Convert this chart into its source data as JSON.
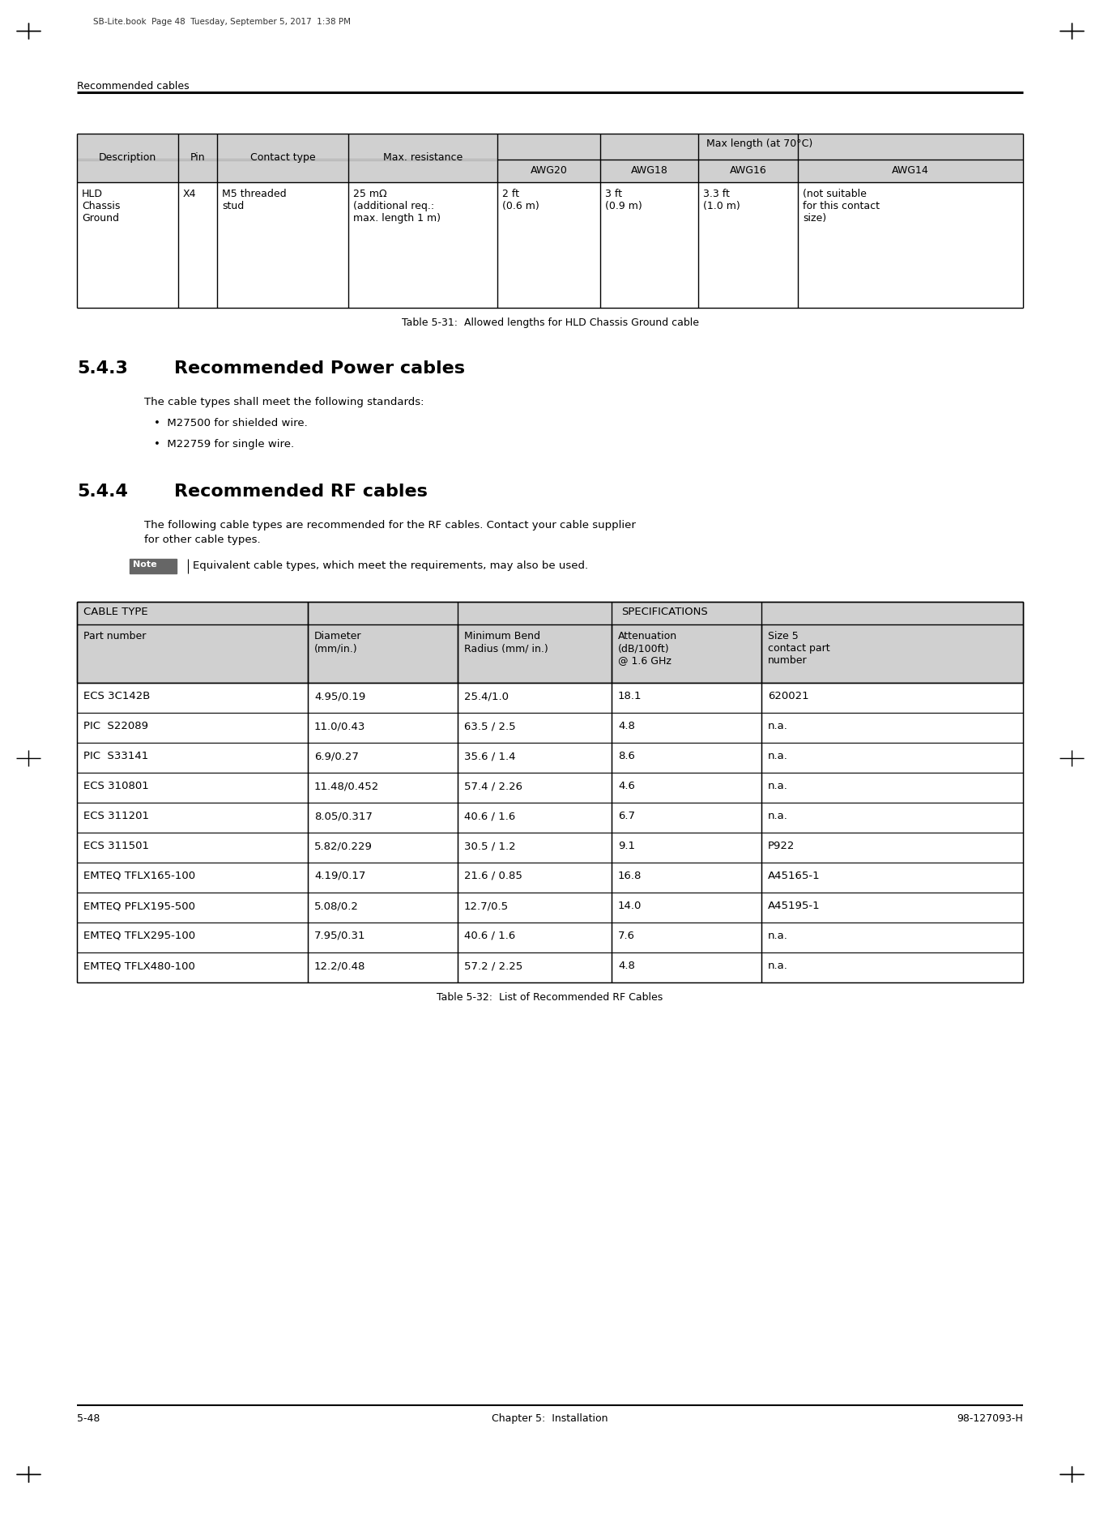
{
  "page_header_text": "SB-Lite.book  Page 48  Tuesday, September 5, 2017  1:38 PM",
  "section_header": "Recommended cables",
  "footer_left": "5-48",
  "footer_center": "Chapter 5:  Installation",
  "footer_right": "98-127093-H",
  "table1_caption": "Table 5-31:  Allowed lengths for HLD Chassis Ground cable",
  "section_543_num": "5.4.3",
  "section_543_title": "Recommended Power cables",
  "section_543_body": "The cable types shall meet the following standards:",
  "section_543_bullets": [
    "M27500 for shielded wire.",
    "M22759 for single wire."
  ],
  "section_544_num": "5.4.4",
  "section_544_title": "Recommended RF cables",
  "section_544_body1": "The following cable types are recommended for the RF cables. Contact your cable supplier",
  "section_544_body2": "for other cable types.",
  "note_text": "Equivalent cable types, which meet the requirements, may also be used.",
  "table2_caption": "Table 5-32:  List of Recommended RF Cables",
  "table2_sub_headers": [
    "Part number",
    "Diameter\n(mm/in.)",
    "Minimum Bend\nRadius (mm/ in.)",
    "Attenuation\n(dB/100ft)\n@ 1.6 GHz",
    "Size 5\ncontact part\nnumber"
  ],
  "table2_data": [
    [
      "ECS 3C142B",
      "4.95/0.19",
      "25.4/1.0",
      "18.1",
      "620021"
    ],
    [
      "PIC  S22089",
      "11.0/0.43",
      "63.5 / 2.5",
      "4.8",
      "n.a."
    ],
    [
      "PIC  S33141",
      "6.9/0.27",
      "35.6 / 1.4",
      "8.6",
      "n.a."
    ],
    [
      "ECS 310801",
      "11.48/0.452",
      "57.4 / 2.26",
      "4.6",
      "n.a."
    ],
    [
      "ECS 311201",
      "8.05/0.317",
      "40.6 / 1.6",
      "6.7",
      "n.a."
    ],
    [
      "ECS 311501",
      "5.82/0.229",
      "30.5 / 1.2",
      "9.1",
      "P922"
    ],
    [
      "EMTEQ TFLX165-100",
      "4.19/0.17",
      "21.6 / 0.85",
      "16.8",
      "A45165-1"
    ],
    [
      "EMTEQ PFLX195-500",
      "5.08/0.2",
      "12.7/0.5",
      "14.0",
      "A45195-1"
    ],
    [
      "EMTEQ TFLX295-100",
      "7.95/0.31",
      "40.6 / 1.6",
      "7.6",
      "n.a."
    ],
    [
      "EMTEQ TFLX480-100",
      "12.2/0.48",
      "57.2 / 2.25",
      "4.8",
      "n.a."
    ]
  ],
  "bg_color": "#ffffff",
  "table_header_bg": "#d0d0d0",
  "table_border_color": "#000000",
  "text_color": "#000000"
}
